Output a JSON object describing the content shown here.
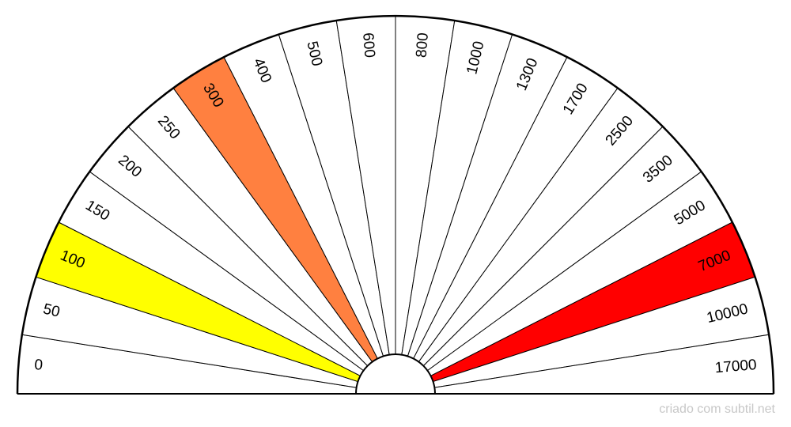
{
  "dial": {
    "sectors": [
      {
        "label": "0",
        "color": "#ffffff"
      },
      {
        "label": "50",
        "color": "#ffffff"
      },
      {
        "label": "100",
        "color": "#ffff00"
      },
      {
        "label": "150",
        "color": "#ffffff"
      },
      {
        "label": "200",
        "color": "#ffffff"
      },
      {
        "label": "250",
        "color": "#ffffff"
      },
      {
        "label": "300",
        "color": "#ff8040"
      },
      {
        "label": "400",
        "color": "#ffffff"
      },
      {
        "label": "500",
        "color": "#ffffff"
      },
      {
        "label": "600",
        "color": "#ffffff"
      },
      {
        "label": "800",
        "color": "#ffffff"
      },
      {
        "label": "1000",
        "color": "#ffffff"
      },
      {
        "label": "1300",
        "color": "#ffffff"
      },
      {
        "label": "1700",
        "color": "#ffffff"
      },
      {
        "label": "2500",
        "color": "#ffffff"
      },
      {
        "label": "3500",
        "color": "#ffffff"
      },
      {
        "label": "5000",
        "color": "#ffffff"
      },
      {
        "label": "7000",
        "color": "#ff0000"
      },
      {
        "label": "10000",
        "color": "#ffffff"
      },
      {
        "label": "17000",
        "color": "#ffffff"
      }
    ]
  },
  "footer": {
    "credit": "criado com subtil.net"
  }
}
